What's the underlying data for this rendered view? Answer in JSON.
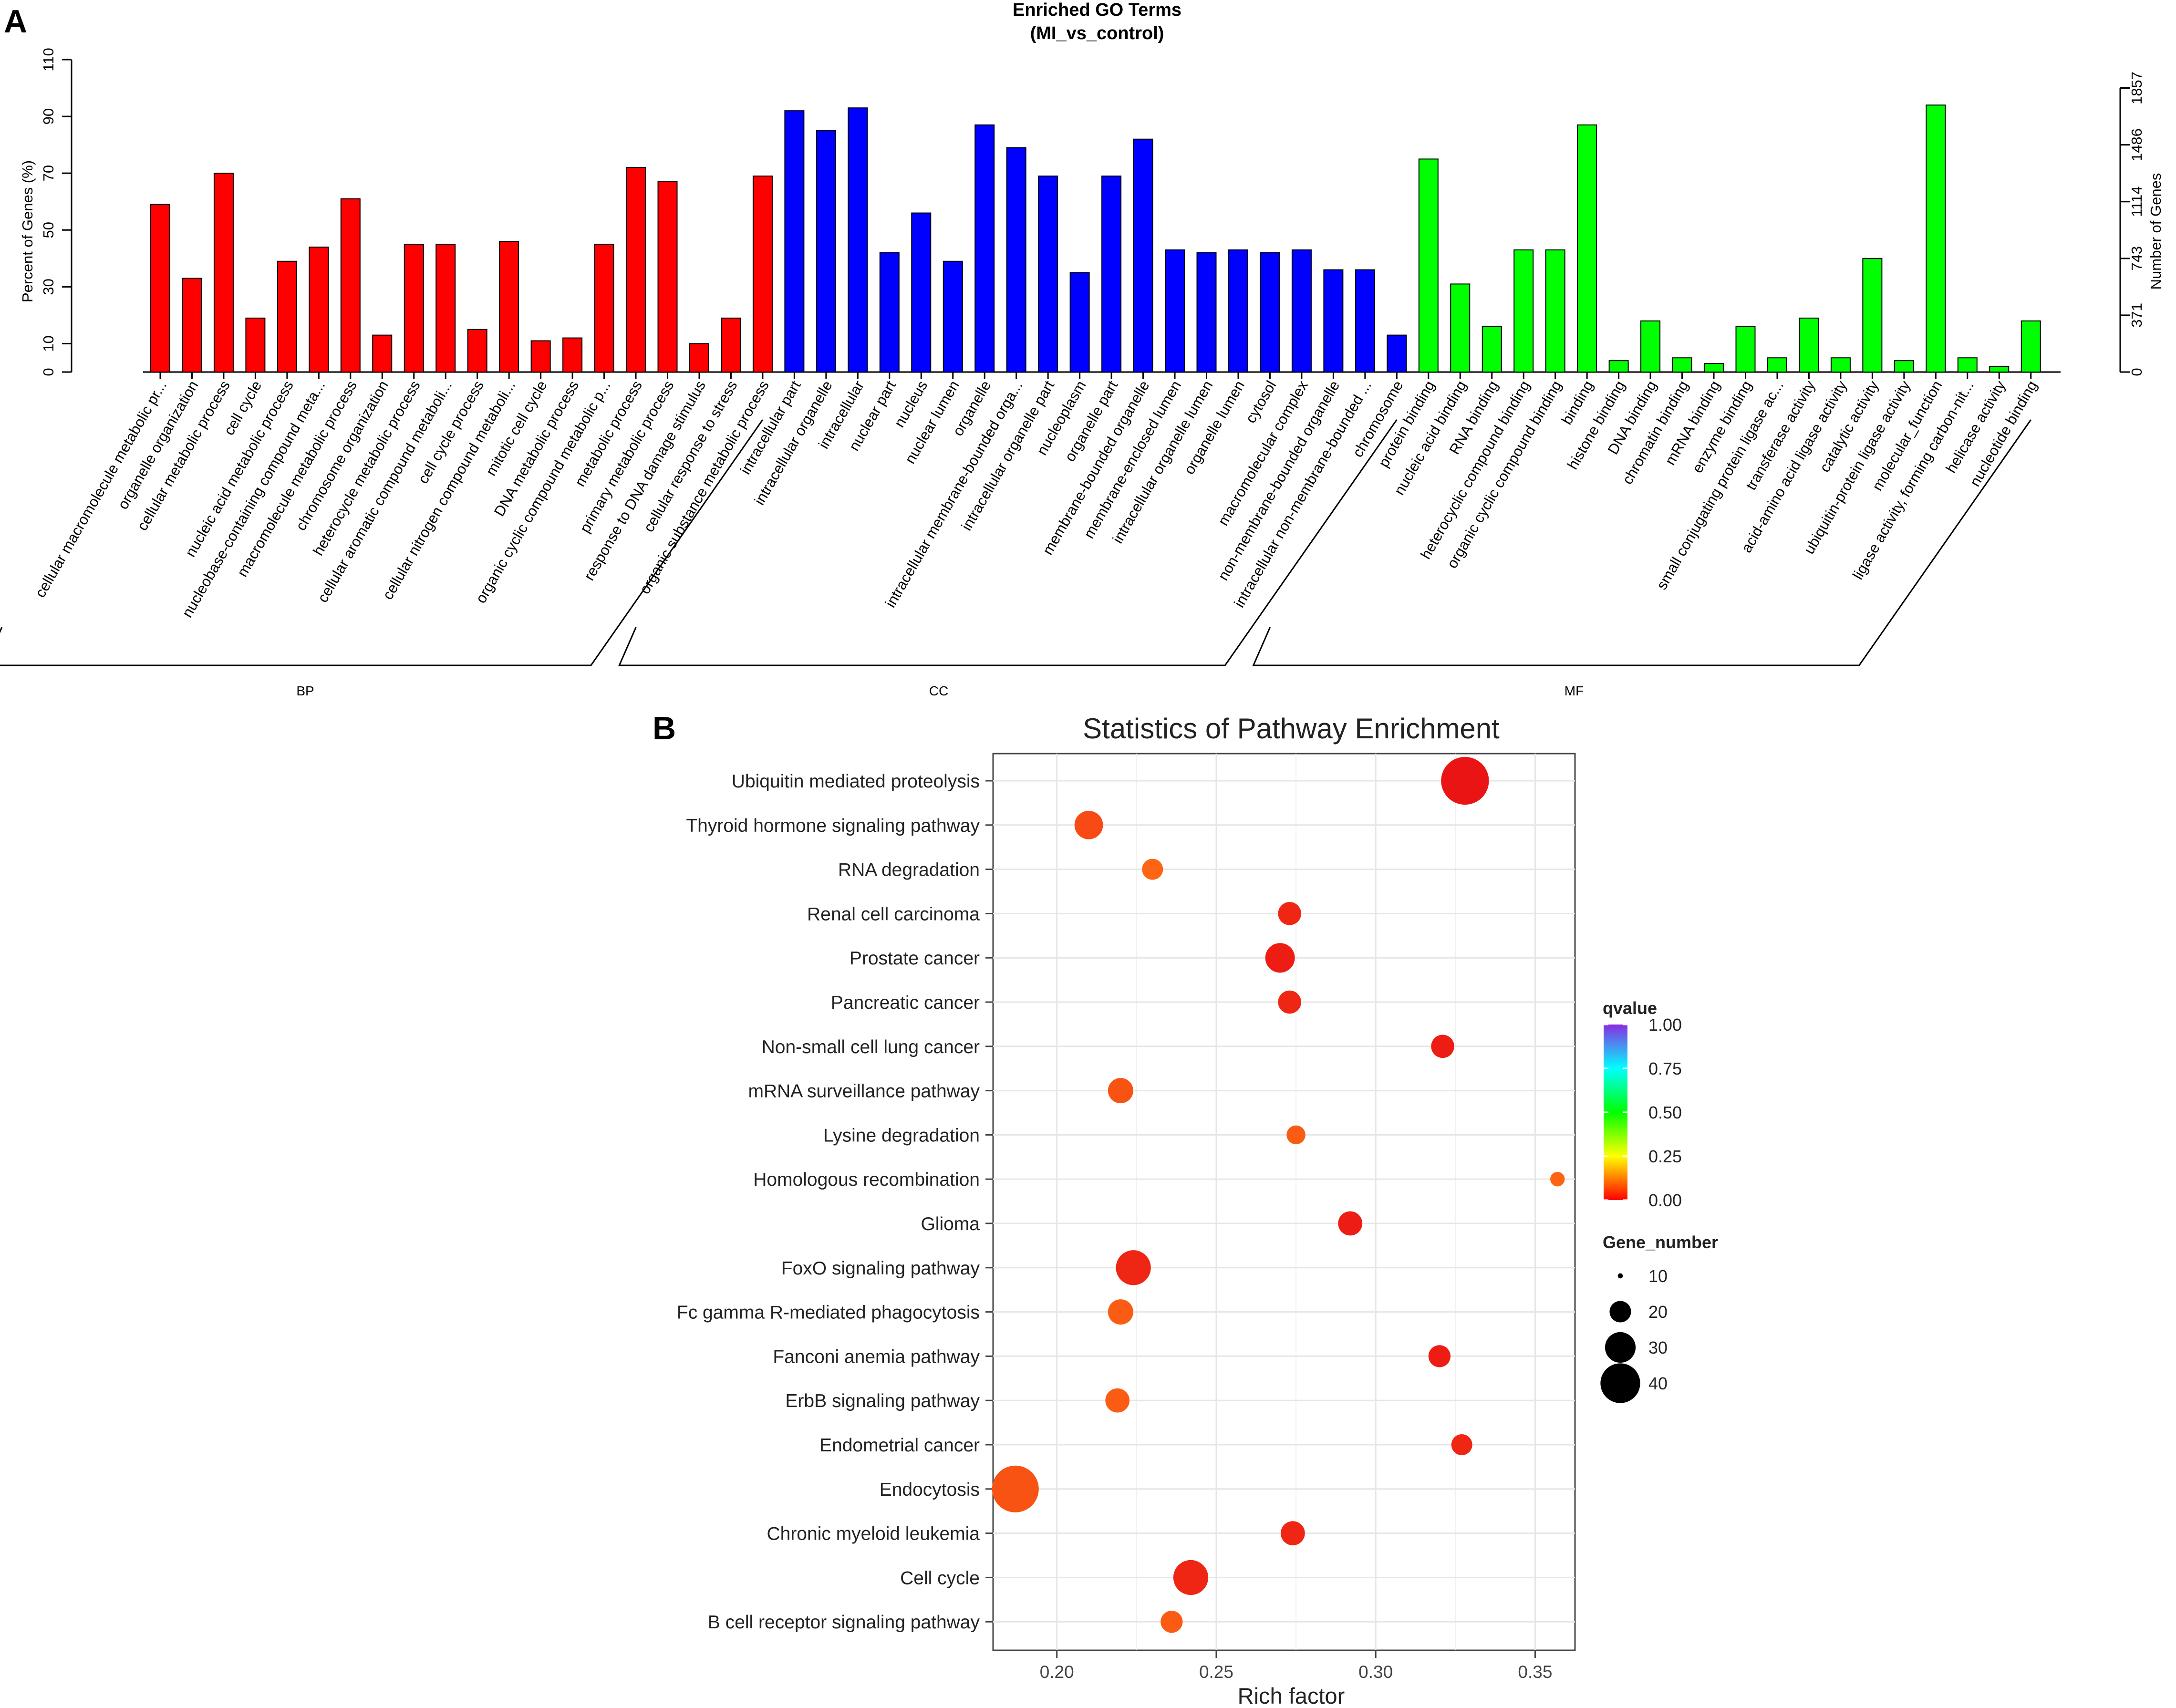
{
  "chart_data": [
    {
      "panel": "A",
      "type": "bar",
      "title": "Enriched GO Terms",
      "subtitle": "(MI_vs_control)",
      "ylabel": "Percent of Genes (%)",
      "ylabel_right": "Number of Genes",
      "ylim": [
        0,
        110
      ],
      "yticks": [
        0,
        10,
        30,
        50,
        70,
        90,
        110
      ],
      "right_ticks": [
        {
          "pct": 0,
          "label": "0"
        },
        {
          "pct": 20,
          "label": "371"
        },
        {
          "pct": 40,
          "label": "743"
        },
        {
          "pct": 60,
          "label": "1114"
        },
        {
          "pct": 80,
          "label": "1486"
        },
        {
          "pct": 100,
          "label": "1857"
        }
      ],
      "groups": [
        {
          "name": "BP",
          "color": "#ff0000"
        },
        {
          "name": "CC",
          "color": "#0000ff"
        },
        {
          "name": "MF",
          "color": "#00ff00"
        }
      ],
      "categories": [
        {
          "label": "cellular macromolecule metabolic pr...",
          "value": 59,
          "group": "BP"
        },
        {
          "label": "organelle organization",
          "value": 33,
          "group": "BP"
        },
        {
          "label": "cellular metabolic process",
          "value": 70,
          "group": "BP"
        },
        {
          "label": "cell cycle",
          "value": 19,
          "group": "BP"
        },
        {
          "label": "nucleic acid metabolic process",
          "value": 39,
          "group": "BP"
        },
        {
          "label": "nucleobase-containing compound meta...",
          "value": 44,
          "group": "BP"
        },
        {
          "label": "macromolecule metabolic process",
          "value": 61,
          "group": "BP"
        },
        {
          "label": "chromosome organization",
          "value": 13,
          "group": "BP"
        },
        {
          "label": "heterocycle metabolic process",
          "value": 45,
          "group": "BP"
        },
        {
          "label": "cellular aromatic compound metaboli...",
          "value": 45,
          "group": "BP"
        },
        {
          "label": "cell cycle process",
          "value": 15,
          "group": "BP"
        },
        {
          "label": "cellular nitrogen compound metaboli...",
          "value": 46,
          "group": "BP"
        },
        {
          "label": "mitotic cell cycle",
          "value": 11,
          "group": "BP"
        },
        {
          "label": "DNA metabolic process",
          "value": 12,
          "group": "BP"
        },
        {
          "label": "organic cyclic compound metabolic p...",
          "value": 45,
          "group": "BP"
        },
        {
          "label": "metabolic process",
          "value": 72,
          "group": "BP"
        },
        {
          "label": "primary metabolic process",
          "value": 67,
          "group": "BP"
        },
        {
          "label": "response to DNA damage stimulus",
          "value": 10,
          "group": "BP"
        },
        {
          "label": "cellular response to stress",
          "value": 19,
          "group": "BP"
        },
        {
          "label": "organic substance metabolic process",
          "value": 69,
          "group": "BP"
        },
        {
          "label": "intracellular part",
          "value": 92,
          "group": "CC"
        },
        {
          "label": "intracellular organelle",
          "value": 85,
          "group": "CC"
        },
        {
          "label": "intracellular",
          "value": 93,
          "group": "CC"
        },
        {
          "label": "nuclear part",
          "value": 42,
          "group": "CC"
        },
        {
          "label": "nucleus",
          "value": 56,
          "group": "CC"
        },
        {
          "label": "nuclear lumen",
          "value": 39,
          "group": "CC"
        },
        {
          "label": "organelle",
          "value": 87,
          "group": "CC"
        },
        {
          "label": "intracellular membrane-bounded orga...",
          "value": 79,
          "group": "CC"
        },
        {
          "label": "intracellular organelle part",
          "value": 69,
          "group": "CC"
        },
        {
          "label": "nucleoplasm",
          "value": 35,
          "group": "CC"
        },
        {
          "label": "organelle part",
          "value": 69,
          "group": "CC"
        },
        {
          "label": "membrane-bounded organelle",
          "value": 82,
          "group": "CC"
        },
        {
          "label": "membrane-enclosed lumen",
          "value": 43,
          "group": "CC"
        },
        {
          "label": "intracellular organelle lumen",
          "value": 42,
          "group": "CC"
        },
        {
          "label": "organelle lumen",
          "value": 43,
          "group": "CC"
        },
        {
          "label": "cytosol",
          "value": 42,
          "group": "CC"
        },
        {
          "label": "macromolecular complex",
          "value": 43,
          "group": "CC"
        },
        {
          "label": "non-membrane-bounded organelle",
          "value": 36,
          "group": "CC"
        },
        {
          "label": "intracellular non-membrane-bounded ...",
          "value": 36,
          "group": "CC"
        },
        {
          "label": "chromosome",
          "value": 13,
          "group": "CC"
        },
        {
          "label": "protein binding",
          "value": 75,
          "group": "MF"
        },
        {
          "label": "nucleic acid binding",
          "value": 31,
          "group": "MF"
        },
        {
          "label": "RNA binding",
          "value": 16,
          "group": "MF"
        },
        {
          "label": "heterocyclic compound binding",
          "value": 43,
          "group": "MF"
        },
        {
          "label": "organic cyclic compound binding",
          "value": 43,
          "group": "MF"
        },
        {
          "label": "binding",
          "value": 87,
          "group": "MF"
        },
        {
          "label": "histone binding",
          "value": 4,
          "group": "MF"
        },
        {
          "label": "DNA binding",
          "value": 18,
          "group": "MF"
        },
        {
          "label": "chromatin binding",
          "value": 5,
          "group": "MF"
        },
        {
          "label": "mRNA binding",
          "value": 3,
          "group": "MF"
        },
        {
          "label": "enzyme binding",
          "value": 16,
          "group": "MF"
        },
        {
          "label": "small conjugating protein ligase ac...",
          "value": 5,
          "group": "MF"
        },
        {
          "label": "transferase activity",
          "value": 19,
          "group": "MF"
        },
        {
          "label": "acid-amino acid ligase activity",
          "value": 5,
          "group": "MF"
        },
        {
          "label": "catalytic activity",
          "value": 40,
          "group": "MF"
        },
        {
          "label": "ubiquitin-protein ligase activity",
          "value": 4,
          "group": "MF"
        },
        {
          "label": "molecular_function",
          "value": 94,
          "group": "MF"
        },
        {
          "label": "ligase activity, forming carbon-nit...",
          "value": 5,
          "group": "MF"
        },
        {
          "label": "helicase activity",
          "value": 2,
          "group": "MF"
        },
        {
          "label": "nucleotide binding",
          "value": 18,
          "group": "MF"
        }
      ]
    },
    {
      "panel": "B",
      "type": "scatter",
      "title": "Statistics of Pathway Enrichment",
      "xlabel": "Rich factor",
      "xlim": [
        0.18,
        0.3625
      ],
      "xticks": [
        0.2,
        0.25,
        0.3,
        0.35
      ],
      "xtick_labels": [
        "0.20",
        "0.25",
        "0.30",
        "0.35"
      ],
      "color_legend_title": "qvalue",
      "color_legend_ticks": [
        "1.00",
        "0.75",
        "0.50",
        "0.25",
        "0.00"
      ],
      "size_legend_title": "Gene_number",
      "size_legend_values": [
        10,
        20,
        30,
        40
      ],
      "size_legend_labels": [
        "10",
        "20",
        "30",
        "40"
      ],
      "points": [
        {
          "term": "Ubiquitin mediated proteolysis",
          "rich_factor": 0.328,
          "gene_number": 41,
          "qvalue": 0.0
        },
        {
          "term": "Thyroid hormone signaling pathway",
          "rich_factor": 0.21,
          "gene_number": 23,
          "qvalue": 0.06
        },
        {
          "term": "RNA degradation",
          "rich_factor": 0.23,
          "gene_number": 16,
          "qvalue": 0.09
        },
        {
          "term": "Renal cell carcinoma",
          "rich_factor": 0.273,
          "gene_number": 18,
          "qvalue": 0.02
        },
        {
          "term": "Prostate cancer",
          "rich_factor": 0.27,
          "gene_number": 24,
          "qvalue": 0.01
        },
        {
          "term": "Pancreatic cancer",
          "rich_factor": 0.273,
          "gene_number": 18,
          "qvalue": 0.02
        },
        {
          "term": "Non-small cell lung cancer",
          "rich_factor": 0.321,
          "gene_number": 18,
          "qvalue": 0.01
        },
        {
          "term": "mRNA surveillance pathway",
          "rich_factor": 0.22,
          "gene_number": 20,
          "qvalue": 0.07
        },
        {
          "term": "Lysine degradation",
          "rich_factor": 0.275,
          "gene_number": 14,
          "qvalue": 0.08
        },
        {
          "term": "Homologous recombination",
          "rich_factor": 0.357,
          "gene_number": 10,
          "qvalue": 0.09
        },
        {
          "term": "Glioma",
          "rich_factor": 0.292,
          "gene_number": 19,
          "qvalue": 0.01
        },
        {
          "term": "FoxO signaling pathway",
          "rich_factor": 0.224,
          "gene_number": 29,
          "qvalue": 0.02
        },
        {
          "term": "Fc gamma R-mediated phagocytosis",
          "rich_factor": 0.22,
          "gene_number": 20,
          "qvalue": 0.08
        },
        {
          "term": "Fanconi anemia pathway",
          "rich_factor": 0.32,
          "gene_number": 17,
          "qvalue": 0.01
        },
        {
          "term": "ErbB signaling pathway",
          "rich_factor": 0.219,
          "gene_number": 19,
          "qvalue": 0.08
        },
        {
          "term": "Endometrial cancer",
          "rich_factor": 0.327,
          "gene_number": 16,
          "qvalue": 0.02
        },
        {
          "term": "Endocytosis",
          "rich_factor": 0.187,
          "gene_number": 40,
          "qvalue": 0.07
        },
        {
          "term": "Chronic myeloid leukemia",
          "rich_factor": 0.274,
          "gene_number": 19,
          "qvalue": 0.02
        },
        {
          "term": "Cell cycle",
          "rich_factor": 0.242,
          "gene_number": 29,
          "qvalue": 0.02
        },
        {
          "term": "B cell receptor signaling pathway",
          "rich_factor": 0.236,
          "gene_number": 17,
          "qvalue": 0.08
        }
      ]
    }
  ],
  "colors": {
    "bp": "#ff0000",
    "cc": "#0000ff",
    "mf": "#00ff00",
    "q_low": "#ff0000",
    "q_mid1": "#ffff00",
    "q_mid2": "#00ff00",
    "q_mid3": "#00ffff",
    "q_high": "#8a2be2"
  }
}
